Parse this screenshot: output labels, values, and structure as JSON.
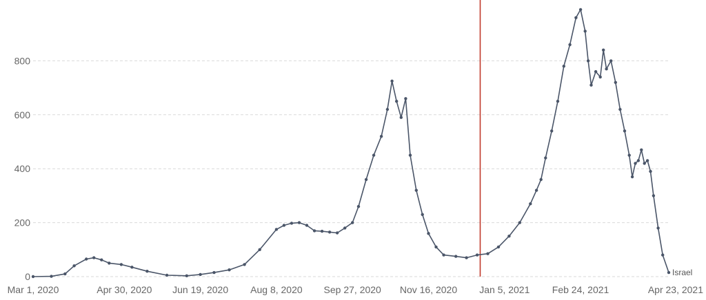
{
  "chart_data": {
    "type": "line",
    "x_type": "date",
    "title": "",
    "xlabel": "",
    "ylabel": "",
    "ylim": [
      0,
      1000
    ],
    "xlim": [
      "2020-03-01",
      "2021-04-23"
    ],
    "y_ticks": [
      0,
      200,
      400,
      600,
      800
    ],
    "x_ticks": [
      {
        "date": "2020-03-01",
        "label": "Mar 1, 2020"
      },
      {
        "date": "2020-04-30",
        "label": "Apr 30, 2020"
      },
      {
        "date": "2020-06-19",
        "label": "Jun 19, 2020"
      },
      {
        "date": "2020-08-08",
        "label": "Aug 8, 2020"
      },
      {
        "date": "2020-09-27",
        "label": "Sep 27, 2020"
      },
      {
        "date": "2020-11-16",
        "label": "Nov 16, 2020"
      },
      {
        "date": "2021-01-05",
        "label": "Jan 5, 2021"
      },
      {
        "date": "2021-02-24",
        "label": "Feb 24, 2021"
      },
      {
        "date": "2021-04-23",
        "label": "Apr 23, 2021"
      }
    ],
    "grid": true,
    "reference_line": {
      "date": "2020-12-20",
      "color": "#c0392b"
    },
    "series": [
      {
        "name": "Israel",
        "color": "#4a5568",
        "points": [
          [
            "2020-03-01",
            0
          ],
          [
            "2020-03-13",
            1
          ],
          [
            "2020-03-22",
            10
          ],
          [
            "2020-03-28",
            40
          ],
          [
            "2020-04-05",
            65
          ],
          [
            "2020-04-10",
            70
          ],
          [
            "2020-04-15",
            62
          ],
          [
            "2020-04-20",
            50
          ],
          [
            "2020-04-28",
            45
          ],
          [
            "2020-05-05",
            35
          ],
          [
            "2020-05-15",
            20
          ],
          [
            "2020-05-28",
            5
          ],
          [
            "2020-06-10",
            3
          ],
          [
            "2020-06-19",
            8
          ],
          [
            "2020-06-28",
            15
          ],
          [
            "2020-07-08",
            25
          ],
          [
            "2020-07-18",
            45
          ],
          [
            "2020-07-28",
            100
          ],
          [
            "2020-08-08",
            175
          ],
          [
            "2020-08-13",
            190
          ],
          [
            "2020-08-18",
            198
          ],
          [
            "2020-08-23",
            200
          ],
          [
            "2020-08-28",
            190
          ],
          [
            "2020-09-02",
            170
          ],
          [
            "2020-09-07",
            168
          ],
          [
            "2020-09-12",
            165
          ],
          [
            "2020-09-17",
            162
          ],
          [
            "2020-09-22",
            180
          ],
          [
            "2020-09-27",
            200
          ],
          [
            "2020-10-01",
            260
          ],
          [
            "2020-10-06",
            360
          ],
          [
            "2020-10-11",
            450
          ],
          [
            "2020-10-16",
            520
          ],
          [
            "2020-10-20",
            620
          ],
          [
            "2020-10-23",
            725
          ],
          [
            "2020-10-26",
            650
          ],
          [
            "2020-10-29",
            590
          ],
          [
            "2020-11-01",
            660
          ],
          [
            "2020-11-04",
            450
          ],
          [
            "2020-11-08",
            320
          ],
          [
            "2020-11-12",
            230
          ],
          [
            "2020-11-16",
            160
          ],
          [
            "2020-11-21",
            110
          ],
          [
            "2020-11-26",
            80
          ],
          [
            "2020-12-04",
            75
          ],
          [
            "2020-12-11",
            70
          ],
          [
            "2020-12-18",
            80
          ],
          [
            "2020-12-25",
            85
          ],
          [
            "2021-01-01",
            110
          ],
          [
            "2021-01-08",
            150
          ],
          [
            "2021-01-15",
            200
          ],
          [
            "2021-01-22",
            270
          ],
          [
            "2021-01-26",
            320
          ],
          [
            "2021-01-29",
            360
          ],
          [
            "2021-02-01",
            440
          ],
          [
            "2021-02-05",
            540
          ],
          [
            "2021-02-09",
            650
          ],
          [
            "2021-02-13",
            780
          ],
          [
            "2021-02-17",
            860
          ],
          [
            "2021-02-21",
            960
          ],
          [
            "2021-02-24",
            990
          ],
          [
            "2021-02-27",
            910
          ],
          [
            "2021-03-01",
            800
          ],
          [
            "2021-03-03",
            710
          ],
          [
            "2021-03-06",
            760
          ],
          [
            "2021-03-09",
            740
          ],
          [
            "2021-03-11",
            840
          ],
          [
            "2021-03-13",
            770
          ],
          [
            "2021-03-16",
            800
          ],
          [
            "2021-03-19",
            720
          ],
          [
            "2021-03-22",
            620
          ],
          [
            "2021-03-25",
            540
          ],
          [
            "2021-03-28",
            450
          ],
          [
            "2021-03-30",
            370
          ],
          [
            "2021-04-01",
            420
          ],
          [
            "2021-04-03",
            430
          ],
          [
            "2021-04-05",
            470
          ],
          [
            "2021-04-07",
            420
          ],
          [
            "2021-04-09",
            430
          ],
          [
            "2021-04-11",
            390
          ],
          [
            "2021-04-13",
            300
          ],
          [
            "2021-04-16",
            180
          ],
          [
            "2021-04-19",
            80
          ],
          [
            "2021-04-23",
            15
          ]
        ]
      }
    ]
  }
}
